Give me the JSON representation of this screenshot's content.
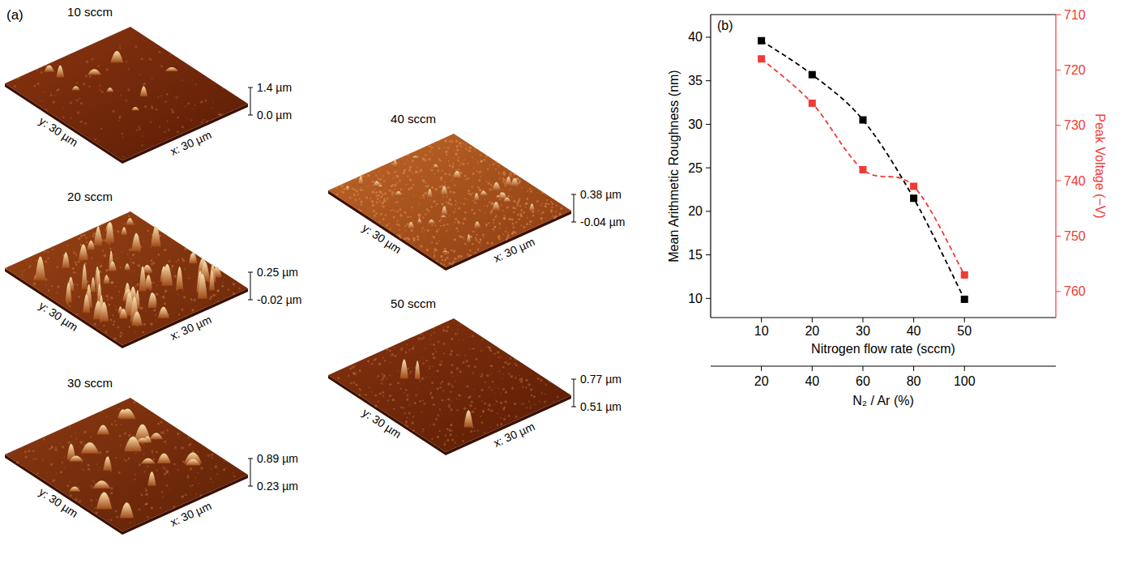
{
  "panel_a": {
    "label": "(a)",
    "images": [
      {
        "title": "10 sccm",
        "z_top": "1.4 µm",
        "z_bottom": "0.0 µm",
        "y_axis": "y: 30 µm",
        "x_axis": "x: 30 µm"
      },
      {
        "title": "20 sccm",
        "z_top": "0.25 µm",
        "z_bottom": "-0.02 µm",
        "y_axis": "y: 30 µm",
        "x_axis": "x: 30 µm"
      },
      {
        "title": "30 sccm",
        "z_top": "0.89 µm",
        "z_bottom": "0.23 µm",
        "y_axis": "y: 30 µm",
        "x_axis": "x: 30 µm"
      },
      {
        "title": "40 sccm",
        "z_top": "0.38 µm",
        "z_bottom": "-0.04 µm",
        "y_axis": "y: 30 µm",
        "x_axis": "x: 30 µm"
      },
      {
        "title": "50 sccm",
        "z_top": "0.77 µm",
        "z_bottom": "0.51 µm",
        "y_axis": "y: 30 µm",
        "x_axis": "x: 30 µm"
      }
    ]
  },
  "chart_data": {
    "type": "scatter",
    "panel_label": "(b)",
    "xlabel": "Nitrogen flow rate (sccm)",
    "x2label": "N₂ / Ar (%)",
    "ylabel": "Mean Arithmetic Roughness (nm)",
    "y2label": "Peak Voltage (−V)",
    "x": [
      10,
      20,
      30,
      40,
      50
    ],
    "xlim": [
      0,
      68
    ],
    "xticks": [
      10,
      20,
      30,
      40,
      50
    ],
    "x2lim": [
      0,
      136
    ],
    "x2ticks": [
      20,
      40,
      60,
      80,
      100
    ],
    "ylim": [
      7.8,
      42.6
    ],
    "yticks": [
      10,
      15,
      20,
      25,
      30,
      35,
      40
    ],
    "y2lim": [
      764.7,
      710
    ],
    "y2ticks": [
      710,
      720,
      730,
      740,
      750,
      760
    ],
    "grid": false,
    "series": [
      {
        "color": "#000000",
        "marker": "square",
        "line_style": "dashed",
        "values": [
          39.6,
          35.7,
          30.5,
          21.5,
          9.9
        ]
      },
      {
        "color": "#ef3b36",
        "marker": "square",
        "line_style": "dashed",
        "axis": "y2",
        "values": [
          718,
          726,
          738,
          741,
          757
        ]
      }
    ]
  }
}
